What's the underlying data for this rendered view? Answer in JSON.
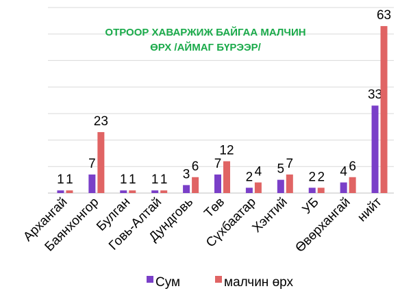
{
  "chart_data": {
    "type": "bar",
    "title": [
      "ОТРООР ХАВАРЖИЖ БАЙГАА МАЛЧИН",
      "ӨРХ  /АЙМАГ БҮРЭЭР/"
    ],
    "categories": [
      "Архангай",
      "Баянхонгор",
      "Булган",
      "Говь-Алтай",
      "Дундговь",
      "Төв",
      "Сүхбаатар",
      "Хэнтий",
      "УБ",
      "Өвөрхангай",
      "нийт"
    ],
    "series": [
      {
        "name": "Сум",
        "color": "#7a3fc8",
        "values": [
          1,
          7,
          1,
          1,
          3,
          7,
          2,
          5,
          2,
          4,
          33
        ]
      },
      {
        "name": "малчин өрх",
        "color": "#e06464",
        "values": [
          1,
          23,
          1,
          1,
          6,
          12,
          4,
          7,
          2,
          6,
          63
        ]
      }
    ],
    "ylim": [
      0,
      70
    ],
    "yticks": [
      0,
      10,
      20,
      30,
      40,
      50,
      60,
      70
    ],
    "grid": true,
    "legend": "bottom"
  }
}
